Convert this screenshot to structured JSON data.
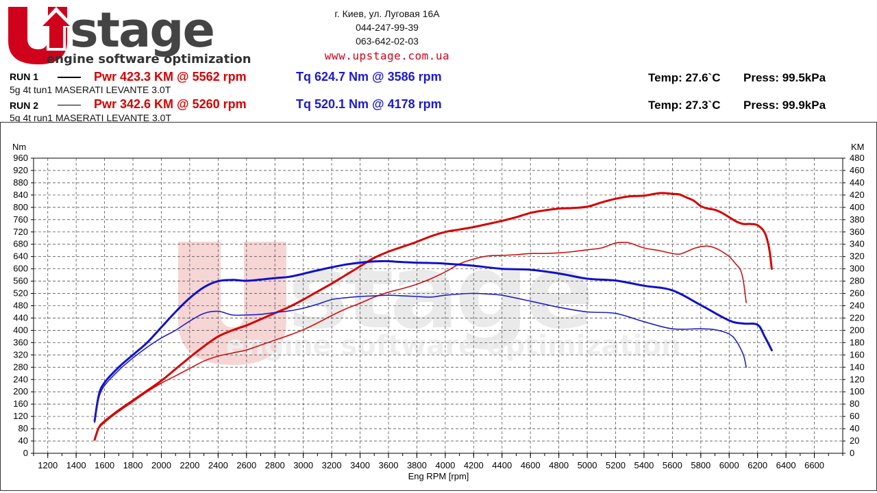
{
  "header": {
    "logo_main": "UPstage",
    "logo_tagline": "engine software optimization",
    "address": "г. Киев, ул. Луговая 16А",
    "phone1": "044-247-99-39",
    "phone2": "063-642-02-03",
    "website": "www.upstage.com.ua"
  },
  "runs": [
    {
      "label": "RUN 1",
      "power": "Pwr  423.3 KM @ 5562 rpm",
      "torque": "Tq 624.7 Nm @ 3586 rpm",
      "temp": "Temp: 27.6`C",
      "press": "Press: 99.5kPa",
      "description": "5g 4t tun1 MASERATI LEVANTE 3.0T"
    },
    {
      "label": "RUN 2",
      "power": "Pwr  342.6 KM @ 5260 rpm",
      "torque": "Tq 520.1 Nm @ 4178 rpm",
      "temp": "Temp: 27.3`C",
      "press": "Press: 99.9kPa",
      "description": "5g 4t run1 MASERATI LEVANTE 3.0T"
    }
  ],
  "colors": {
    "power": "#d50000",
    "torque": "#1010c8",
    "grid": "#555555"
  },
  "chart_data": {
    "type": "line",
    "xlabel": "Eng RPM [rpm]",
    "ylabel": "Nm",
    "y2label": "KM",
    "xlim": [
      1100,
      6800
    ],
    "ylim": [
      0,
      960
    ],
    "y2lim": [
      0,
      480
    ],
    "x_ticks": [
      1200,
      1400,
      1600,
      1800,
      2000,
      2200,
      2400,
      2600,
      2800,
      3000,
      3200,
      3400,
      3600,
      3800,
      4000,
      4200,
      4400,
      4600,
      4800,
      5000,
      5200,
      5400,
      5600,
      5800,
      6000,
      6200,
      6400,
      6600
    ],
    "y_ticks": [
      0,
      40,
      80,
      120,
      160,
      200,
      240,
      280,
      320,
      360,
      400,
      440,
      480,
      520,
      560,
      600,
      640,
      680,
      720,
      760,
      800,
      840,
      880,
      920,
      960
    ],
    "y2_ticks": [
      0,
      20,
      40,
      60,
      80,
      100,
      120,
      140,
      160,
      180,
      200,
      220,
      240,
      260,
      280,
      300,
      320,
      340,
      360,
      380,
      400,
      420,
      440,
      460,
      480
    ],
    "grid": true,
    "series": [
      {
        "name": "RUN 1 Pwr",
        "axis": "right",
        "color": "#d50000",
        "width": 3,
        "x": [
          1530,
          1560,
          1600,
          1700,
          1800,
          1900,
          2000,
          2100,
          2200,
          2300,
          2400,
          2500,
          2600,
          2700,
          2800,
          2900,
          3000,
          3100,
          3200,
          3300,
          3400,
          3500,
          3600,
          3700,
          3800,
          3900,
          4000,
          4100,
          4200,
          4300,
          4400,
          4500,
          4600,
          4700,
          4800,
          4900,
          5000,
          5100,
          5200,
          5300,
          5400,
          5500,
          5560,
          5600,
          5650,
          5700,
          5750,
          5800,
          5850,
          5900,
          5950,
          6000,
          6050,
          6100,
          6150,
          6200,
          6250,
          6280,
          6300
        ],
        "y": [
          22,
          42,
          52,
          70,
          86,
          102,
          118,
          137,
          156,
          174,
          190,
          200,
          208,
          218,
          228,
          238,
          250,
          263,
          276,
          290,
          304,
          318,
          328,
          336,
          344,
          353,
          360,
          364,
          368,
          373,
          378,
          384,
          391,
          395,
          398,
          399,
          401,
          408,
          414,
          418,
          419,
          423,
          423,
          422,
          421,
          416,
          411,
          402,
          398,
          396,
          391,
          384,
          377,
          373,
          373,
          371,
          359,
          335,
          300
        ]
      },
      {
        "name": "RUN 2 Pwr",
        "axis": "right",
        "color": "#cc1111",
        "width": 1.6,
        "x": [
          1530,
          1560,
          1600,
          1700,
          1800,
          1900,
          2000,
          2100,
          2200,
          2300,
          2400,
          2500,
          2600,
          2700,
          2800,
          2900,
          3000,
          3100,
          3200,
          3300,
          3400,
          3500,
          3600,
          3700,
          3800,
          3900,
          4000,
          4100,
          4200,
          4300,
          4400,
          4500,
          4600,
          4700,
          4800,
          4900,
          5000,
          5100,
          5200,
          5260,
          5300,
          5400,
          5500,
          5600,
          5650,
          5700,
          5750,
          5800,
          5850,
          5900,
          5950,
          6000,
          6050,
          6080,
          6100,
          6120
        ],
        "y": [
          22,
          40,
          50,
          68,
          84,
          100,
          114,
          126,
          138,
          150,
          158,
          163,
          168,
          176,
          184,
          192,
          201,
          212,
          224,
          235,
          244,
          254,
          262,
          268,
          275,
          284,
          295,
          308,
          316,
          321,
          322,
          323,
          325,
          325,
          326,
          328,
          331,
          334,
          342,
          343,
          342,
          334,
          330,
          325,
          324,
          328,
          333,
          336,
          337,
          334,
          328,
          320,
          307,
          298,
          280,
          245
        ]
      },
      {
        "name": "RUN 1 Tq",
        "axis": "left",
        "color": "#1010c8",
        "width": 3,
        "x": [
          1530,
          1560,
          1600,
          1700,
          1800,
          1900,
          2000,
          2100,
          2200,
          2300,
          2400,
          2500,
          2600,
          2700,
          2800,
          2900,
          3000,
          3100,
          3200,
          3300,
          3400,
          3500,
          3586,
          3700,
          3800,
          3900,
          4000,
          4200,
          4400,
          4600,
          4800,
          5000,
          5200,
          5400,
          5600,
          5800,
          6000,
          6100,
          6200,
          6250,
          6300
        ],
        "y": [
          105,
          190,
          230,
          280,
          320,
          360,
          410,
          460,
          505,
          540,
          560,
          564,
          561,
          565,
          570,
          574,
          584,
          595,
          605,
          614,
          620,
          624,
          625,
          622,
          620,
          619,
          617,
          610,
          600,
          597,
          585,
          568,
          562,
          545,
          530,
          482,
          432,
          422,
          418,
          380,
          335
        ]
      },
      {
        "name": "RUN 2 Tq",
        "axis": "left",
        "color": "#2020c0",
        "width": 1.6,
        "x": [
          1530,
          1560,
          1600,
          1700,
          1800,
          1900,
          2000,
          2100,
          2200,
          2300,
          2400,
          2500,
          2600,
          2700,
          2800,
          2900,
          3000,
          3100,
          3200,
          3300,
          3400,
          3500,
          3600,
          3700,
          3800,
          3900,
          4000,
          4178,
          4300,
          4400,
          4600,
          4800,
          5000,
          5200,
          5400,
          5600,
          5800,
          5900,
          6000,
          6050,
          6100,
          6120
        ],
        "y": [
          100,
          180,
          220,
          270,
          310,
          345,
          375,
          400,
          430,
          455,
          462,
          450,
          450,
          452,
          458,
          463,
          472,
          485,
          500,
          506,
          510,
          512,
          514,
          512,
          510,
          508,
          514,
          520,
          518,
          514,
          495,
          475,
          460,
          455,
          428,
          405,
          405,
          402,
          388,
          365,
          320,
          280
        ]
      }
    ]
  }
}
